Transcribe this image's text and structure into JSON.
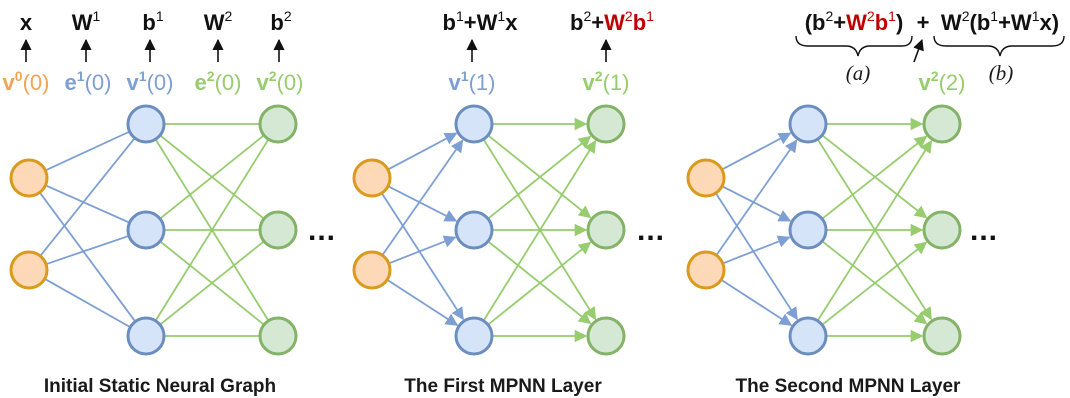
{
  "colors": {
    "input_fill": "#fdd9b8",
    "input_stroke": "#d99a1e",
    "hidden_fill": "#d6e4fa",
    "hidden_stroke": "#6c8ebf",
    "output_fill": "#d5e8d4",
    "output_stroke": "#82b366",
    "edge_blue": "#7e9fd4",
    "edge_green": "#97cc6f",
    "label_orange": "#f0a553",
    "label_blue": "#7e9fd4",
    "label_green": "#97cc6f",
    "accent_red": "#c00000",
    "text": "#1a1a1a"
  },
  "panel1": {
    "caption": "Initial Static Neural Graph",
    "params": {
      "x": "x",
      "W1_base": "W",
      "W1_sup": "1",
      "b1_base": "b",
      "b1_sup": "1",
      "W2_base": "W",
      "W2_sup": "2",
      "b2_base": "b",
      "b2_sup": "2"
    },
    "states": {
      "v0": {
        "base": "v",
        "sup": "0",
        "arg": "(0)"
      },
      "e1": {
        "base": "e",
        "sup": "1",
        "arg": "(0)"
      },
      "v1": {
        "base": "v",
        "sup": "1",
        "arg": "(0)"
      },
      "e2": {
        "base": "e",
        "sup": "2",
        "arg": "(0)"
      },
      "v2": {
        "base": "v",
        "sup": "2",
        "arg": "(0)"
      }
    },
    "ellipsis": "..."
  },
  "panel2": {
    "caption": "The First MPNN Layer",
    "expr1": {
      "b": "b",
      "b_sup": "1",
      "plus": "+",
      "W": "W",
      "W_sup": "1",
      "x": "x"
    },
    "expr2": {
      "b": "b",
      "b_sup": "2",
      "plus": "+",
      "W": "W",
      "W_sup": "2",
      "b2": "b",
      "b2_sup": "1"
    },
    "states": {
      "v1": {
        "base": "v",
        "sup": "1",
        "arg": "(1)"
      },
      "v2": {
        "base": "v",
        "sup": "2",
        "arg": "(1)"
      }
    },
    "ellipsis": "..."
  },
  "panel3": {
    "caption": "The Second MPNN Layer",
    "expr_a": {
      "open": "(",
      "b": "b",
      "b_sup": "2",
      "plus": "+",
      "W": "W",
      "W_sup": "2",
      "b2": "b",
      "b2_sup": "1",
      "close": ")"
    },
    "plus": "+",
    "expr_b": {
      "W": "W",
      "W_sup": "2",
      "open": "(",
      "b": "b",
      "b_sup": "1",
      "plus": "+",
      "W2": "W",
      "W2_sup": "1",
      "x": "x",
      "close": ")"
    },
    "brace_a_label": "(a)",
    "brace_b_label": "(b)",
    "state_v2": {
      "base": "v",
      "sup": "2",
      "arg": "(2)"
    },
    "ellipsis": "..."
  }
}
